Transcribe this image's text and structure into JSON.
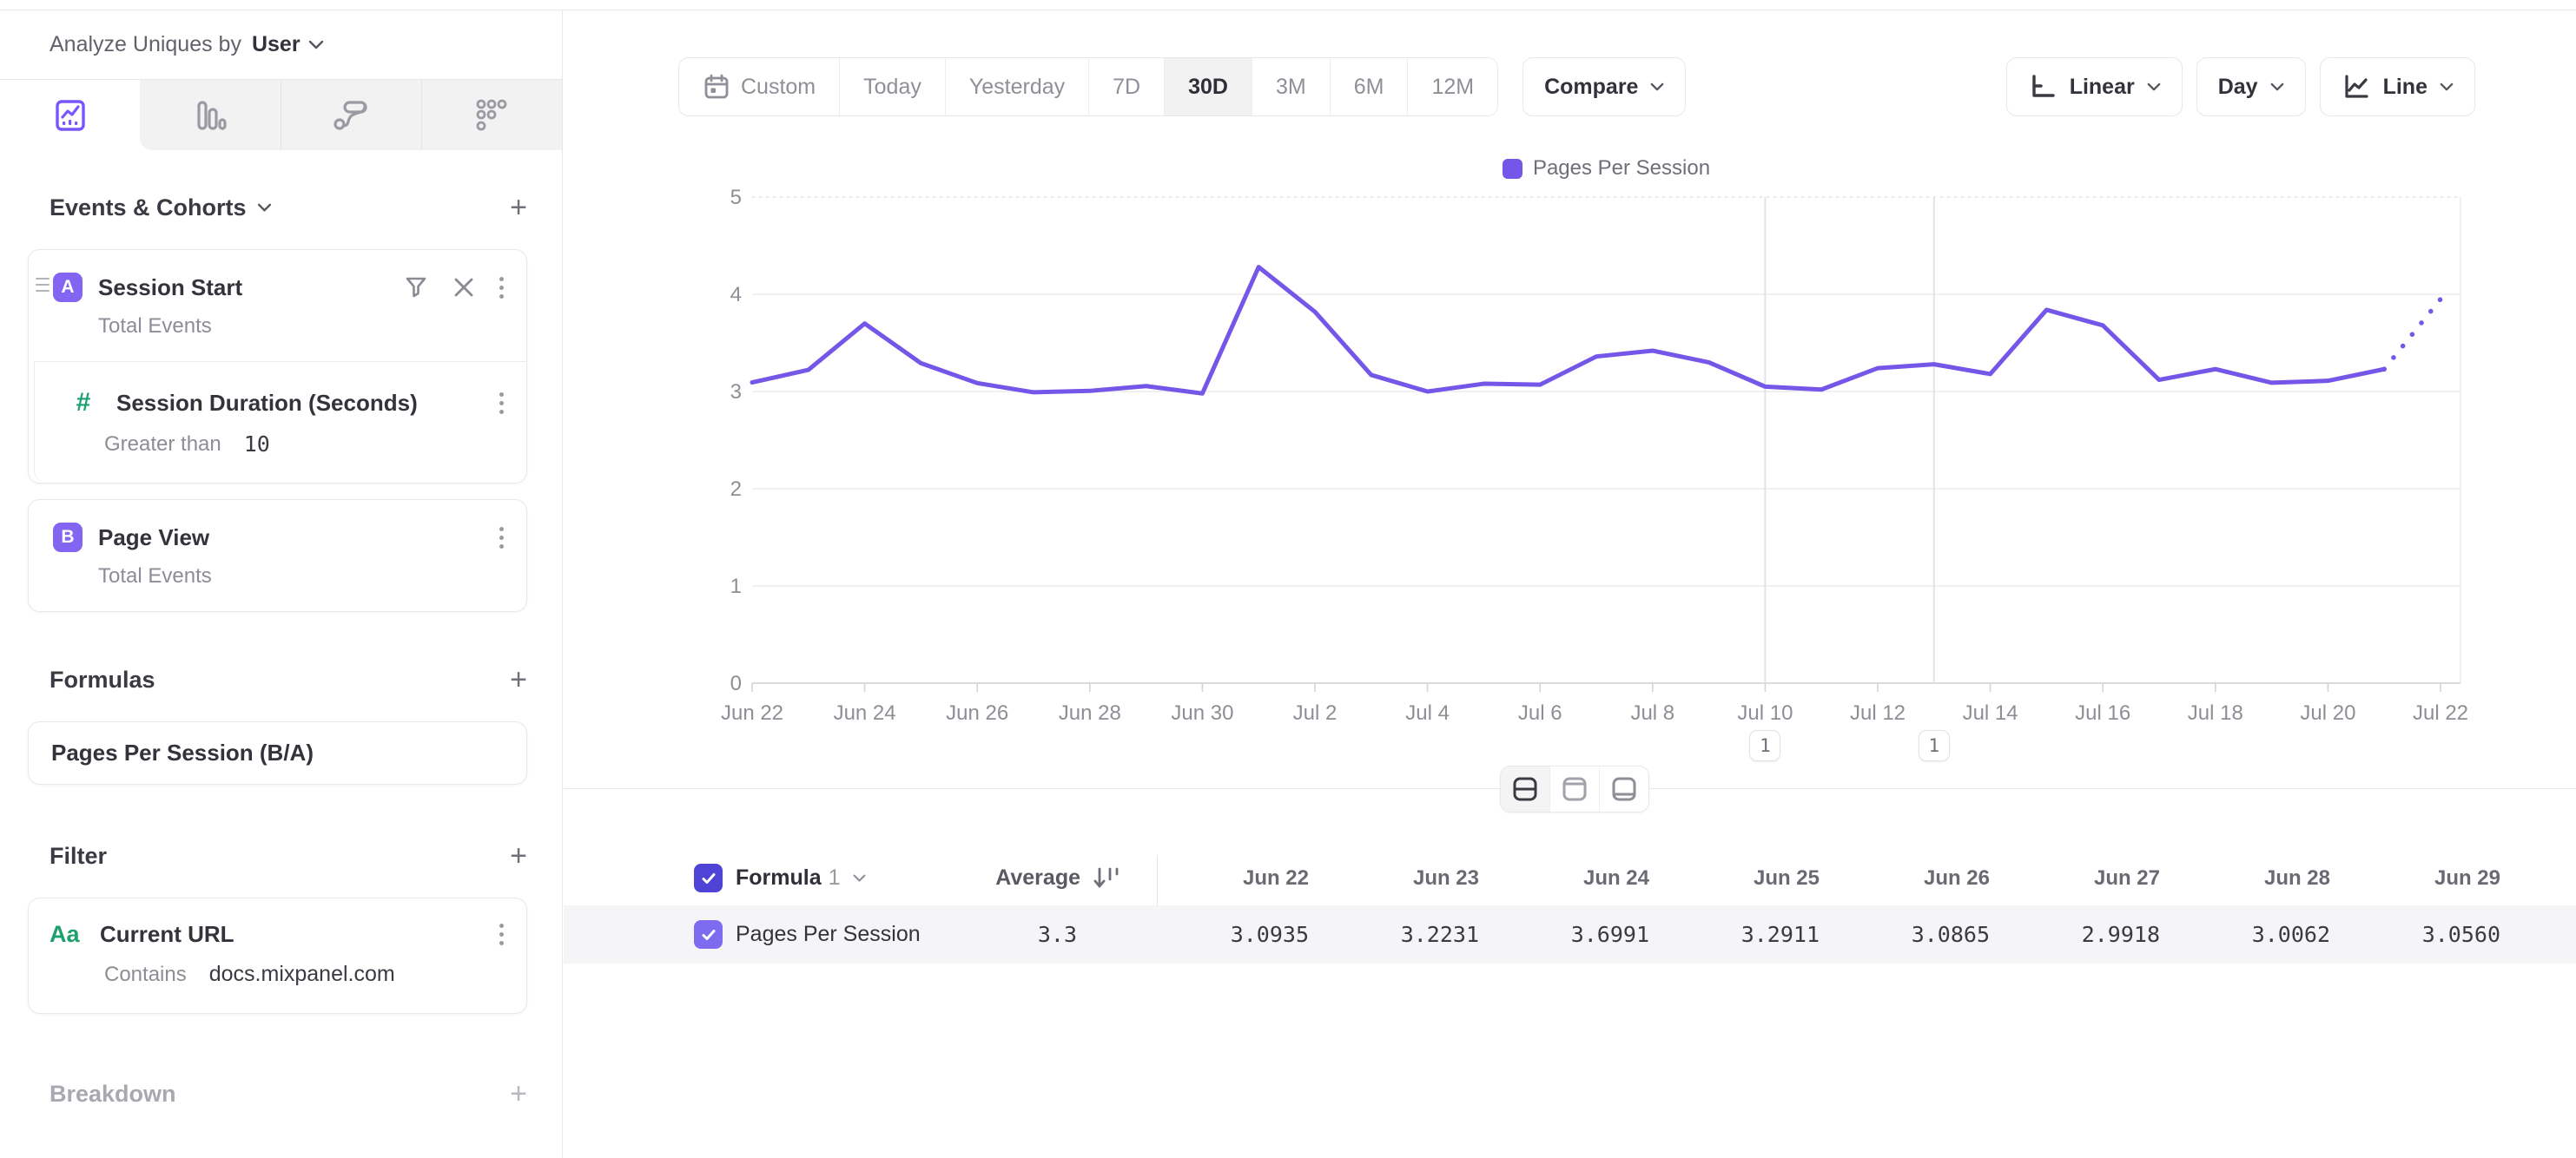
{
  "header": {
    "analyze_label": "Analyze Uniques by",
    "analyze_value": "User"
  },
  "sidebar": {
    "tabs": [
      "insights",
      "funnels",
      "flows",
      "retention"
    ],
    "selected_tab": "insights",
    "events_title": "Events & Cohorts",
    "events": [
      {
        "letter": "A",
        "title": "Session Start",
        "subtitle": "Total Events",
        "property": {
          "title": "Session Duration (Seconds)",
          "operator": "Greater than",
          "value": "10"
        }
      },
      {
        "letter": "B",
        "title": "Page View",
        "subtitle": "Total Events"
      }
    ],
    "formulas_title": "Formulas",
    "formulas": [
      {
        "name": "Pages Per Session (B/A)"
      }
    ],
    "filter_title": "Filter",
    "filters": [
      {
        "icon_label": "Aa",
        "title": "Current URL",
        "operator": "Contains",
        "value": "docs.mixpanel.com"
      }
    ],
    "breakdown_title": "Breakdown"
  },
  "toolbar": {
    "ranges": [
      "Custom",
      "Today",
      "Yesterday",
      "7D",
      "30D",
      "3M",
      "6M",
      "12M"
    ],
    "selected_range": "30D",
    "compare_label": "Compare",
    "scale_label": "Linear",
    "interval_label": "Day",
    "chart_type_label": "Line"
  },
  "chart_data": {
    "type": "line",
    "title": "",
    "xlabel": "",
    "ylabel": "",
    "ylim": [
      0,
      5
    ],
    "yticks": [
      0,
      1,
      2,
      3,
      4,
      5
    ],
    "grid": true,
    "legend_position": "top-center",
    "x_tick_every": 2,
    "dashed_tail_points": 1,
    "x": [
      "Jun 22",
      "Jun 23",
      "Jun 24",
      "Jun 25",
      "Jun 26",
      "Jun 27",
      "Jun 28",
      "Jun 29",
      "Jun 30",
      "Jul 1",
      "Jul 2",
      "Jul 3",
      "Jul 4",
      "Jul 5",
      "Jul 6",
      "Jul 7",
      "Jul 8",
      "Jul 9",
      "Jul 10",
      "Jul 11",
      "Jul 12",
      "Jul 13",
      "Jul 14",
      "Jul 15",
      "Jul 16",
      "Jul 17",
      "Jul 18",
      "Jul 19",
      "Jul 20",
      "Jul 21",
      "Jul 22"
    ],
    "series": [
      {
        "name": "Pages Per Session",
        "values": [
          3.0935,
          3.2231,
          3.6991,
          3.2911,
          3.0865,
          2.9918,
          3.0062,
          3.056,
          2.98,
          4.28,
          3.82,
          3.17,
          3.0,
          3.08,
          3.07,
          3.36,
          3.42,
          3.3,
          3.05,
          3.02,
          3.24,
          3.28,
          3.18,
          3.84,
          3.68,
          3.12,
          3.23,
          3.09,
          3.11,
          3.23,
          3.95
        ]
      }
    ],
    "annotations": [
      {
        "x": "Jul 10",
        "label": "1"
      },
      {
        "x": "Jul 13",
        "label": "1"
      }
    ]
  },
  "table": {
    "header": {
      "name_label": "Formula",
      "name_number": "1",
      "average_label": "Average"
    },
    "columns": [
      "Jun 22",
      "Jun 23",
      "Jun 24",
      "Jun 25",
      "Jun 26",
      "Jun 27",
      "Jun 28",
      "Jun 29"
    ],
    "rows": [
      {
        "name": "Pages Per Session",
        "checked": true,
        "average": "3.3",
        "values": [
          "3.0935",
          "3.2231",
          "3.6991",
          "3.2911",
          "3.0865",
          "2.9918",
          "3.0062",
          "3.0560"
        ]
      }
    ]
  },
  "colors": {
    "accent": "#7456e8",
    "badge": "#8465f2",
    "green": "#1ca06d",
    "checkbox_header": "#4f43d6",
    "checkbox_row": "#7e6bf0"
  }
}
